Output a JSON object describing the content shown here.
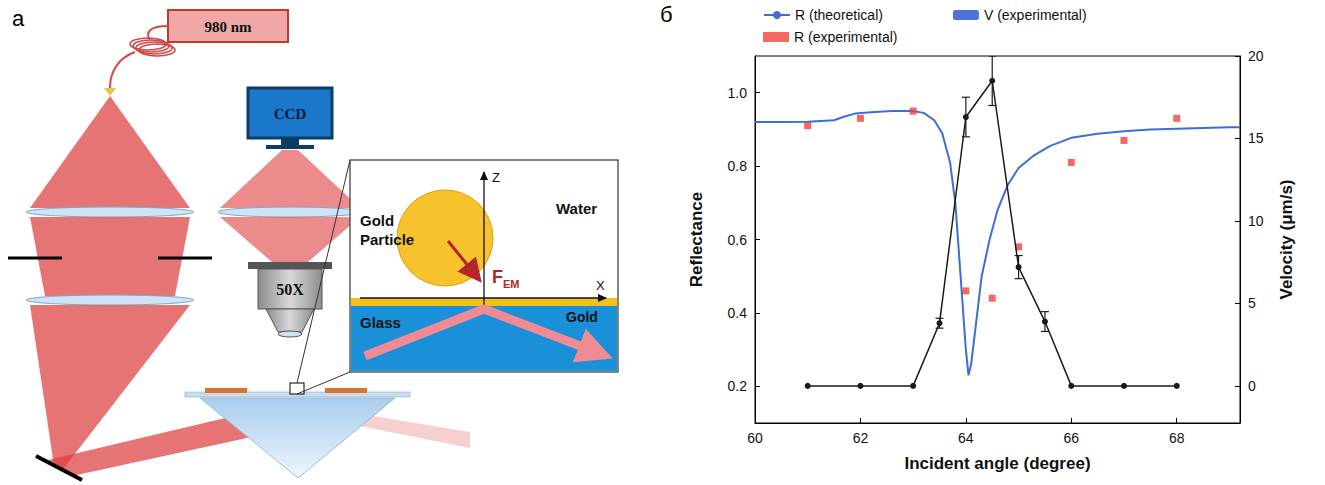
{
  "panel_labels": [
    "а",
    "б"
  ],
  "diagram": {
    "laser": "980 nm",
    "camera": "CCD",
    "objective": "50X",
    "inset": {
      "particle": "Gold Particle",
      "medium": "Water",
      "substrate": "Glass",
      "film": "Gold",
      "z_axis": "Z",
      "x_axis": "X",
      "force": "F",
      "force_subscript": "EM"
    }
  },
  "chart_data": {
    "type": "line",
    "x_label": "Incident angle (degree)",
    "y_label": "Reflectance",
    "y2_label": "Velocity (μm/s)",
    "xlim": [
      60,
      69.2
    ],
    "xticks": [
      60,
      62,
      64,
      66,
      68
    ],
    "ylim": [
      0.1,
      1.1
    ],
    "yticks": [
      0.2,
      0.4,
      0.6,
      0.8,
      {
        "value": 1,
        "label": "1.0"
      }
    ],
    "y2lim": [
      -2.25,
      20
    ],
    "y2ticks": [
      0,
      5,
      10,
      15,
      20
    ],
    "grid": false,
    "legend": "top",
    "series": [
      {
        "name": "R (theoretical)",
        "type": "line",
        "color": "#3b6fd4",
        "marker": "none",
        "line_style": "solid",
        "x": [
          60,
          60.5,
          61,
          61.5,
          61.7,
          61.9,
          62.2,
          62.6,
          63,
          63.2,
          63.4,
          63.55,
          63.7,
          63.8,
          63.9,
          64,
          64.05,
          64.1,
          64.2,
          64.3,
          64.45,
          64.6,
          64.8,
          65,
          65.3,
          65.6,
          66,
          66.5,
          67,
          67.5,
          68,
          68.5,
          69,
          69.2
        ],
        "values": [
          0.92,
          0.92,
          0.921,
          0.925,
          0.935,
          0.943,
          0.947,
          0.95,
          0.95,
          0.945,
          0.925,
          0.89,
          0.81,
          0.7,
          0.5,
          0.3,
          0.23,
          0.26,
          0.38,
          0.5,
          0.6,
          0.68,
          0.75,
          0.795,
          0.83,
          0.855,
          0.877,
          0.888,
          0.895,
          0.9,
          0.902,
          0.904,
          0.906,
          0.906
        ]
      },
      {
        "name": "R (experimental)",
        "type": "scatter",
        "color": "#f0443a",
        "marker": "square",
        "x": [
          61,
          62,
          63,
          64,
          64.5,
          65,
          66,
          67,
          68
        ],
        "values": [
          0.91,
          0.93,
          0.95,
          0.46,
          0.44,
          0.58,
          0.81,
          0.87,
          0.93
        ]
      },
      {
        "name": "V (experimental)",
        "type": "line",
        "axis": "y2",
        "color": "#1a1a1a",
        "marker": "circle",
        "line_style": "solid",
        "x": [
          61,
          62,
          63,
          63.5,
          64,
          64.5,
          65,
          65.5,
          66,
          67,
          68
        ],
        "values": [
          0,
          0,
          0,
          3.8,
          16.3,
          18.5,
          7.2,
          3.9,
          0,
          0,
          0
        ],
        "errors": [
          0,
          0,
          0,
          0.3,
          1.2,
          1.5,
          0.7,
          0.6,
          0,
          0,
          0
        ]
      }
    ]
  }
}
